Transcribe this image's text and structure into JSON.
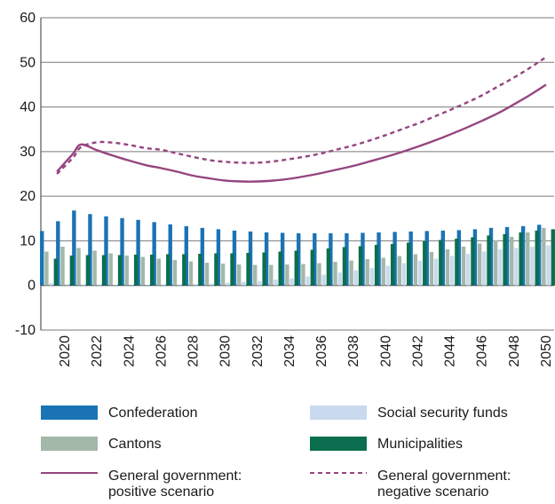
{
  "chart_data": {
    "type": "bar",
    "title": "",
    "xlabel": "",
    "ylabel": "",
    "ylim": [
      -10,
      60
    ],
    "yticks": [
      -10,
      0,
      10,
      20,
      30,
      40,
      50,
      60
    ],
    "grid": true,
    "legend_position": "bottom",
    "categories": [
      2019,
      2020,
      2021,
      2022,
      2023,
      2024,
      2025,
      2026,
      2027,
      2028,
      2029,
      2030,
      2031,
      2032,
      2033,
      2034,
      2035,
      2036,
      2037,
      2038,
      2039,
      2040,
      2041,
      2042,
      2043,
      2044,
      2045,
      2046,
      2047,
      2048,
      2049,
      2050
    ],
    "xtick_labels": [
      "2020",
      "2022",
      "2024",
      "2026",
      "2028",
      "2030",
      "2032",
      "2034",
      "2036",
      "2038",
      "2040",
      "2042",
      "2044",
      "2046",
      "2048",
      "2050"
    ],
    "bar_series": [
      {
        "name": "Confederation",
        "color": "#1a73b5",
        "values": [
          12.2,
          14.4,
          16.8,
          16.0,
          15.5,
          15.1,
          14.7,
          14.2,
          13.7,
          13.3,
          12.9,
          12.6,
          12.3,
          12.1,
          11.9,
          11.8,
          11.7,
          11.7,
          11.7,
          11.7,
          11.8,
          11.9,
          12.0,
          12.1,
          12.2,
          12.3,
          12.4,
          12.6,
          12.9,
          13.1,
          13.3,
          13.6
        ]
      },
      {
        "name": "Cantons",
        "color": "#a3b8a8",
        "values": [
          7.6,
          8.7,
          8.4,
          7.8,
          7.2,
          6.7,
          6.4,
          6.0,
          5.7,
          5.4,
          5.1,
          4.9,
          4.7,
          4.6,
          4.6,
          4.7,
          4.8,
          5.0,
          5.3,
          5.6,
          5.9,
          6.2,
          6.6,
          7.0,
          7.5,
          8.1,
          8.7,
          9.4,
          10.1,
          10.9,
          11.9,
          12.9
        ]
      },
      {
        "name": "Social security funds",
        "color": "#c9d9ee",
        "values": [
          0.5,
          0.3,
          0.2,
          0.2,
          0.1,
          0.1,
          0.1,
          0.2,
          0.2,
          0.3,
          0.4,
          0.6,
          0.8,
          1.0,
          1.3,
          1.6,
          2.0,
          2.4,
          2.9,
          3.4,
          3.9,
          4.4,
          5.0,
          5.5,
          6.0,
          6.6,
          7.1,
          7.6,
          8.1,
          8.4,
          8.7,
          9.0
        ]
      },
      {
        "name": "Municipalities",
        "color": "#0b6e4f",
        "values": [
          6.0,
          6.7,
          6.8,
          6.8,
          6.8,
          6.9,
          6.9,
          7.0,
          7.0,
          7.1,
          7.2,
          7.2,
          7.3,
          7.4,
          7.6,
          7.8,
          8.0,
          8.3,
          8.6,
          8.8,
          9.1,
          9.3,
          9.6,
          9.9,
          10.2,
          10.5,
          10.8,
          11.2,
          11.5,
          11.9,
          12.3,
          12.6
        ]
      }
    ],
    "line_series": [
      {
        "name": "General government: positive scenario",
        "color": "#95457f",
        "style": "solid",
        "x": [
          2019.5,
          2020.5,
          2021,
          2022,
          2023,
          2024,
          2025,
          2026,
          2027,
          2028,
          2029,
          2030,
          2031,
          2032,
          2033,
          2034,
          2035,
          2036,
          2037,
          2038,
          2039,
          2040,
          2041,
          2042,
          2043,
          2044,
          2045,
          2046,
          2047,
          2048,
          2049,
          2050
        ],
        "values": [
          25.5,
          29.5,
          31.6,
          30.3,
          29.1,
          28.0,
          27.0,
          26.3,
          25.5,
          24.6,
          24.0,
          23.5,
          23.3,
          23.3,
          23.5,
          23.9,
          24.5,
          25.2,
          26.0,
          26.8,
          27.8,
          28.8,
          29.9,
          31.1,
          32.4,
          33.8,
          35.3,
          36.9,
          38.6,
          40.6,
          42.7,
          45.0
        ]
      },
      {
        "name": "General government: negative scenario",
        "color": "#95457f",
        "style": "dashed",
        "x": [
          2019.5,
          2020.5,
          2021,
          2022,
          2023,
          2024,
          2025,
          2026,
          2027,
          2028,
          2029,
          2030,
          2031,
          2032,
          2033,
          2034,
          2035,
          2036,
          2037,
          2038,
          2039,
          2040,
          2041,
          2042,
          2043,
          2044,
          2045,
          2046,
          2047,
          2048,
          2049,
          2050
        ],
        "values": [
          25.0,
          28.6,
          31.0,
          32.1,
          32.0,
          31.5,
          30.8,
          30.4,
          29.6,
          28.8,
          28.1,
          27.7,
          27.5,
          27.5,
          27.8,
          28.3,
          28.9,
          29.6,
          30.5,
          31.4,
          32.5,
          33.7,
          35.0,
          36.3,
          37.8,
          39.3,
          40.9,
          42.6,
          44.6,
          46.6,
          48.8,
          51.2
        ]
      }
    ]
  },
  "legend": {
    "confederation": "Confederation",
    "social_security": "Social security funds",
    "cantons": "Cantons",
    "municipalities": "Municipalities",
    "positive": "General government:\npositive scenario",
    "negative": "General government:\nnegative scenario",
    "colors": {
      "confederation": "#1a73b5",
      "social_security": "#c9d9ee",
      "cantons": "#a3b8a8",
      "municipalities": "#0b6e4f",
      "general_government": "#95457f"
    }
  }
}
